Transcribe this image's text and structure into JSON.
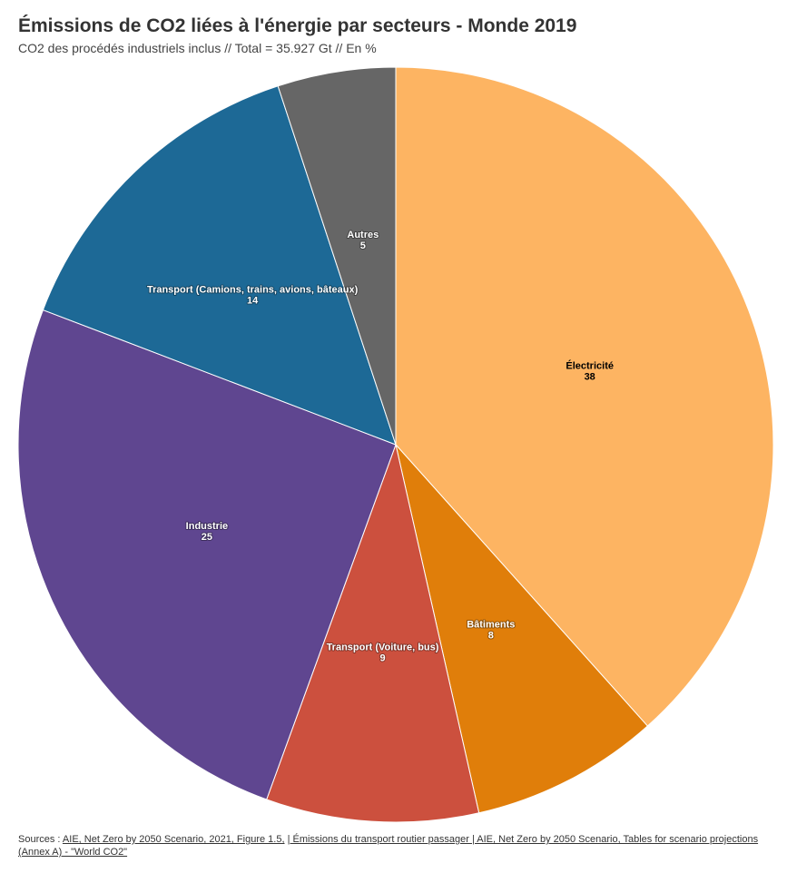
{
  "chart_data": {
    "type": "pie",
    "title": "Émissions de CO2 liées à l'énergie par secteurs - Monde 2019",
    "subtitle": "CO2 des procédés industriels inclus // Total = 35.927 Gt // En %",
    "slices": [
      {
        "label": "Électricité",
        "value": 38,
        "color": "#FDB462",
        "text": "dark"
      },
      {
        "label": "Bâtiments",
        "value": 8,
        "color": "#E07E0A",
        "text": "light"
      },
      {
        "label": "Transport (Voiture, bus)",
        "value": 9,
        "color": "#CC503E",
        "text": "light"
      },
      {
        "label": "Industrie",
        "value": 25,
        "color": "#5F4690",
        "text": "light"
      },
      {
        "label": "Transport (Camions, trains, avions, bâteaux)",
        "value": 14,
        "color": "#1D6996",
        "text": "light"
      },
      {
        "label": "Autres",
        "value": 5,
        "color": "#666666",
        "text": "light"
      }
    ]
  },
  "sources": {
    "prefix": "Sources : ",
    "link1": "AIE, Net Zero by 2050 Scenario, 2021, Figure 1.5,",
    "sep1": " ",
    "link2": "| Émissions du transport routier passager | AIE, Net Zero by 2050 Scenario, Tables for scenario projections (Annex A) - \"World CO2\""
  }
}
